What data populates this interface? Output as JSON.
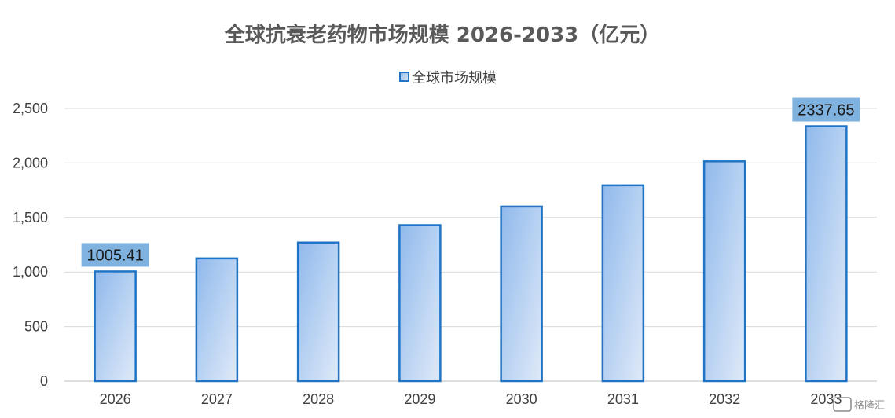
{
  "chart_data": {
    "type": "bar",
    "title": "全球抗衰老药物市场规模 2026-2033（亿元）",
    "categories": [
      "2026",
      "2027",
      "2028",
      "2029",
      "2030",
      "2031",
      "2032",
      "2033"
    ],
    "series": [
      {
        "name": "全球市场规模",
        "values": [
          1005.41,
          1125,
          1270,
          1430,
          1600,
          1795,
          2015,
          2337.65
        ]
      }
    ],
    "data_labels": [
      {
        "category": "2026",
        "text": "1005.41"
      },
      {
        "category": "2033",
        "text": "2337.65"
      }
    ],
    "ylim": [
      0,
      2500
    ],
    "yticks": [
      0,
      500,
      1000,
      1500,
      2000,
      2500
    ],
    "ytick_labels": [
      "0",
      "500",
      "1,000",
      "1,500",
      "2,000",
      "2,500"
    ],
    "grid": true,
    "legend": "top-center",
    "colors": {
      "bar_fill_top": "#8fb9ec",
      "bar_fill_bottom": "#e0eaf8",
      "bar_border": "#1f74c5",
      "label_bg": "#7fb2df",
      "grid": "#d9d9d9"
    }
  },
  "watermark": {
    "text": "格隆汇"
  }
}
